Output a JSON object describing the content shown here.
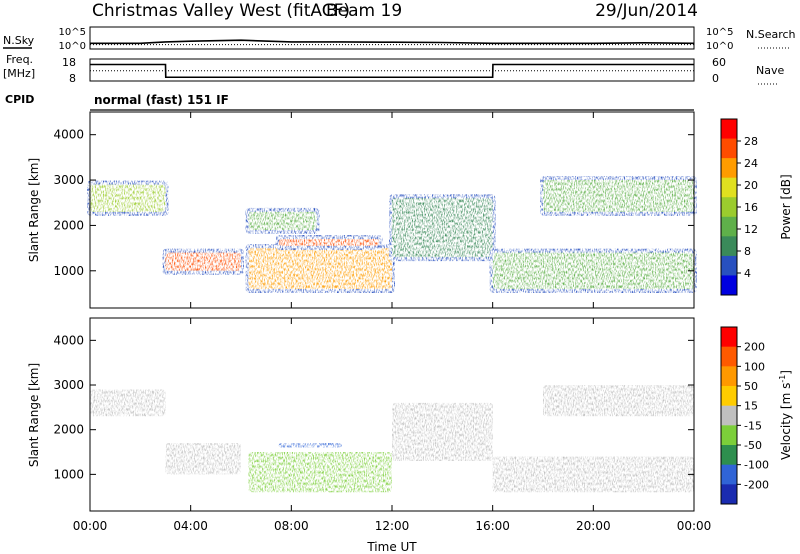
{
  "header": {
    "title": "Christmas Valley West (fitACF)",
    "beam": "Beam 19",
    "date": "29/Jun/2014"
  },
  "status_panel": {
    "nsky_label": "N.Sky",
    "nsearch_label": "N.Search",
    "freq_label": "Freq.",
    "freq_unit": "[MHz]",
    "nave_label": "Nave",
    "cpid_label": "CPID",
    "cpid_value": "normal (fast) 151 IF",
    "noise_ticks_left": [
      "10^5",
      "10^0"
    ],
    "noise_ticks_right": [
      "10^5",
      "10^0"
    ],
    "freq_ticks": [
      "18",
      "8"
    ],
    "nave_ticks": [
      "60",
      "0"
    ]
  },
  "x_axis": {
    "label": "Time UT",
    "ticks": [
      "00:00",
      "04:00",
      "08:00",
      "12:00",
      "16:00",
      "20:00",
      "00:00"
    ]
  },
  "power_colorbar": {
    "label": "Power [dB]",
    "ticks": [
      "28",
      "24",
      "20",
      "16",
      "12",
      "8",
      "4"
    ],
    "colors": [
      "#0000e0",
      "#2850c0",
      "#3a8a5a",
      "#5fb04a",
      "#9bcc2e",
      "#e0e020",
      "#ff9c00",
      "#ff4c00",
      "#ff0000"
    ]
  },
  "velocity_colorbar": {
    "label": "Velocity [m s",
    "label_sup": "-1",
    "label_end": "]",
    "ticks": [
      "200",
      "100",
      "50",
      "15",
      "-15",
      "-50",
      "-100",
      "-200"
    ],
    "colors": [
      "#1a2bb0",
      "#3064d6",
      "#2e8f4e",
      "#7ccf3a",
      "#c0c0c0",
      "#ffcc00",
      "#ff9900",
      "#ff5a00",
      "#ff0000"
    ]
  },
  "chart_data": [
    {
      "type": "line",
      "title": "Christmas Valley West (fitACF)",
      "ylabel": "N.Sky",
      "y2label": "N.Search",
      "yscale": "log",
      "ylim": [
        1,
        100000
      ],
      "x": [
        0,
        2,
        3,
        4,
        6,
        8,
        10,
        12,
        14,
        16,
        18,
        20,
        22,
        24
      ],
      "series": [
        {
          "name": "N.Sky",
          "values": [
            20,
            20,
            40,
            60,
            100,
            40,
            40,
            35,
            30,
            20,
            20,
            20,
            25,
            20
          ]
        },
        {
          "name": "N.Search",
          "values": [
            10,
            10,
            10,
            10,
            10,
            10,
            10,
            10,
            10,
            10,
            10,
            10,
            10,
            10
          ]
        }
      ]
    },
    {
      "type": "line",
      "ylabel": "Freq. [MHz]",
      "y2label": "Nave",
      "ylim": [
        8,
        18
      ],
      "y2lim": [
        0,
        60
      ],
      "x": [
        0,
        3,
        3.01,
        16,
        16.01,
        24
      ],
      "series": [
        {
          "name": "Freq.",
          "values": [
            15.5,
            15.5,
            9.7,
            9.7,
            15.5,
            15.5
          ]
        },
        {
          "name": "Nave",
          "values": [
            28,
            28,
            28,
            28,
            28,
            28
          ]
        }
      ]
    },
    {
      "type": "heatmap",
      "ylabel": "Slant Range [km]",
      "xlabel": "Time UT",
      "xlim": [
        0,
        24
      ],
      "ylim": [
        180,
        4500
      ],
      "yticks": [
        1000,
        2000,
        3000,
        4000
      ],
      "colorbar": "Power [dB]",
      "zlim": [
        0,
        30
      ],
      "regions": [
        {
          "t": [
            0,
            3
          ],
          "r": [
            2300,
            2900
          ],
          "z": 14
        },
        {
          "t": [
            3,
            6
          ],
          "r": [
            1000,
            1400
          ],
          "z": 26
        },
        {
          "t": [
            6.3,
            12
          ],
          "r": [
            600,
            1500
          ],
          "z": 22
        },
        {
          "t": [
            7.5,
            11.5
          ],
          "r": [
            1550,
            1700
          ],
          "z": 24
        },
        {
          "t": [
            6.3,
            9
          ],
          "r": [
            1900,
            2300
          ],
          "z": 12
        },
        {
          "t": [
            12,
            16
          ],
          "r": [
            1300,
            2600
          ],
          "z": 9
        },
        {
          "t": [
            16,
            24
          ],
          "r": [
            600,
            1400
          ],
          "z": 10
        },
        {
          "t": [
            18,
            24
          ],
          "r": [
            2300,
            3000
          ],
          "z": 10
        }
      ]
    },
    {
      "type": "heatmap",
      "ylabel": "Slant Range [km]",
      "xlabel": "Time UT",
      "xlim": [
        0,
        24
      ],
      "ylim": [
        180,
        4500
      ],
      "yticks": [
        1000,
        2000,
        3000,
        4000
      ],
      "colorbar": "Velocity [m s-1]",
      "zlim": [
        -200,
        200
      ],
      "regions": [
        {
          "t": [
            0,
            3
          ],
          "r": [
            2300,
            2900
          ],
          "z": 0
        },
        {
          "t": [
            3,
            6
          ],
          "r": [
            1000,
            1700
          ],
          "z": 0
        },
        {
          "t": [
            6.3,
            12
          ],
          "r": [
            600,
            1500
          ],
          "z": -50
        },
        {
          "t": [
            7.5,
            10
          ],
          "r": [
            1600,
            1700
          ],
          "z": -150
        },
        {
          "t": [
            12,
            16
          ],
          "r": [
            1300,
            2600
          ],
          "z": 0
        },
        {
          "t": [
            16,
            24
          ],
          "r": [
            600,
            1400
          ],
          "z": 0
        },
        {
          "t": [
            18,
            24
          ],
          "r": [
            2300,
            3000
          ],
          "z": 0
        }
      ]
    }
  ]
}
